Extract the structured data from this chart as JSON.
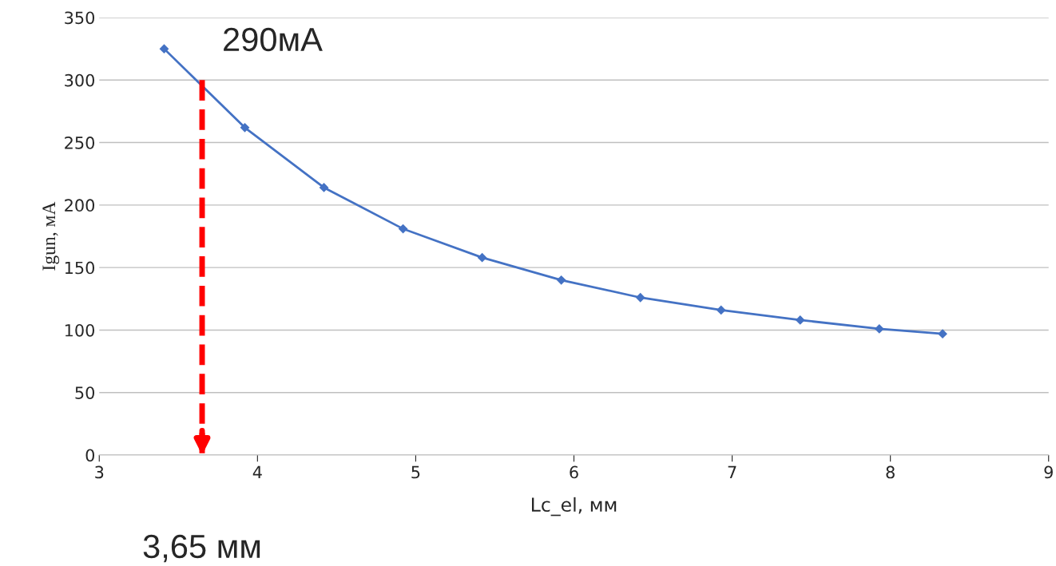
{
  "chart_data": {
    "type": "line",
    "xlabel": "Lc_el, мм",
    "ylabel": "Igun, мА",
    "x": [
      3.41,
      3.92,
      4.42,
      4.92,
      5.42,
      5.92,
      6.42,
      6.93,
      7.43,
      7.93,
      8.33
    ],
    "series": [
      {
        "color": "#4472c4",
        "values": [
          325,
          262,
          214,
          181,
          158,
          140,
          126,
          116,
          108,
          101,
          97
        ]
      },
      {
        "type": "line",
        "x": [
          3.65,
          3.65
        ],
        "values": [
          300,
          0
        ],
        "color": "#ff0000",
        "line_style": "dashed",
        "marker": "none"
      }
    ],
    "xlim": [
      3,
      9
    ],
    "xticks": [
      3,
      4,
      5,
      6,
      7,
      8,
      9
    ],
    "ylim": [
      0,
      350
    ],
    "yticks": [
      0,
      50,
      100,
      150,
      200,
      250,
      300,
      350
    ],
    "grid": "y",
    "marker": "diamond",
    "line_style": "solid",
    "legend": false,
    "annotations": [
      {
        "text": "3,65 мм",
        "x": 3.65,
        "y": 0
      },
      {
        "text": "290мА",
        "x": 3.65,
        "y": 300
      }
    ]
  }
}
